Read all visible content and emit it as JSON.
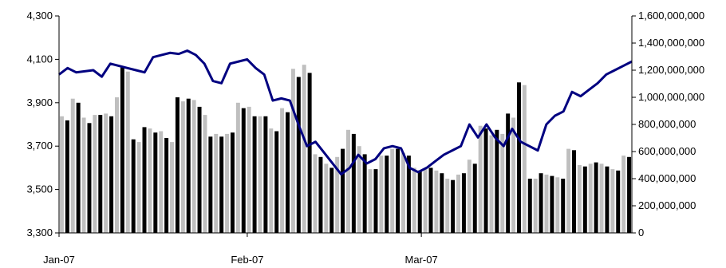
{
  "chart_data": {
    "type": "bar+line",
    "title": "",
    "x_ticks": [
      "Jan-07",
      "Feb-07",
      "Mar-07"
    ],
    "y_left": {
      "min": 3300,
      "max": 4300,
      "ticks": [
        "3,300",
        "3,500",
        "3,700",
        "3,900",
        "4,100",
        "4,300"
      ]
    },
    "y_right": {
      "min": 0,
      "max": 1600000000,
      "ticks": [
        "0",
        "200,000,000",
        "400,000,000",
        "600,000,000",
        "800,000,000",
        "1,000,000,000",
        "1,200,000,000",
        "1,400,000,000",
        "1,600,000,000"
      ]
    },
    "series": [
      {
        "axis": "right",
        "kind": "bar",
        "color_light": "#bfbfbf",
        "color_dark": "#000000",
        "values": [
          860000000,
          830000000,
          990000000,
          960000000,
          850000000,
          810000000,
          870000000,
          870000000,
          880000000,
          860000000,
          1000000000,
          1220000000,
          1190000000,
          690000000,
          670000000,
          780000000,
          770000000,
          740000000,
          750000000,
          700000000,
          670000000,
          1000000000,
          970000000,
          990000000,
          980000000,
          930000000,
          870000000,
          710000000,
          730000000,
          710000000,
          730000000,
          740000000,
          960000000,
          920000000,
          930000000,
          860000000,
          860000000,
          860000000,
          770000000,
          750000000,
          920000000,
          890000000,
          1210000000,
          1150000000,
          1240000000,
          1180000000,
          580000000,
          560000000,
          510000000,
          480000000,
          560000000,
          620000000,
          760000000,
          730000000,
          640000000,
          580000000,
          470000000,
          470000000,
          570000000,
          570000000,
          620000000,
          620000000,
          590000000,
          570000000,
          480000000,
          460000000,
          470000000,
          480000000,
          460000000,
          440000000,
          400000000,
          390000000,
          430000000,
          440000000,
          540000000,
          510000000,
          790000000,
          770000000,
          720000000,
          760000000,
          730000000,
          880000000,
          850000000,
          1110000000,
          1090000000,
          400000000,
          400000000,
          440000000,
          430000000,
          420000000,
          410000000,
          400000000,
          620000000,
          610000000,
          500000000,
          490000000,
          510000000,
          520000000,
          510000000,
          490000000,
          470000000,
          460000000,
          570000000,
          560000000
        ]
      },
      {
        "axis": "left",
        "kind": "line",
        "color": "#000080",
        "values": [
          4030,
          4060,
          4040,
          4045,
          4050,
          4020,
          4080,
          4070,
          4060,
          4050,
          4040,
          4110,
          4120,
          4130,
          4125,
          4140,
          4120,
          4080,
          4000,
          3990,
          4080,
          4090,
          4100,
          4060,
          4030,
          3910,
          3920,
          3910,
          3800,
          3700,
          3720,
          3670,
          3620,
          3570,
          3600,
          3660,
          3620,
          3640,
          3690,
          3700,
          3690,
          3600,
          3580,
          3600,
          3630,
          3660,
          3680,
          3700,
          3800,
          3740,
          3800,
          3740,
          3700,
          3780,
          3720,
          3700,
          3680,
          3800,
          3840,
          3860,
          3950,
          3930,
          3960,
          3990,
          4030,
          4050,
          4070,
          4090
        ]
      }
    ]
  }
}
